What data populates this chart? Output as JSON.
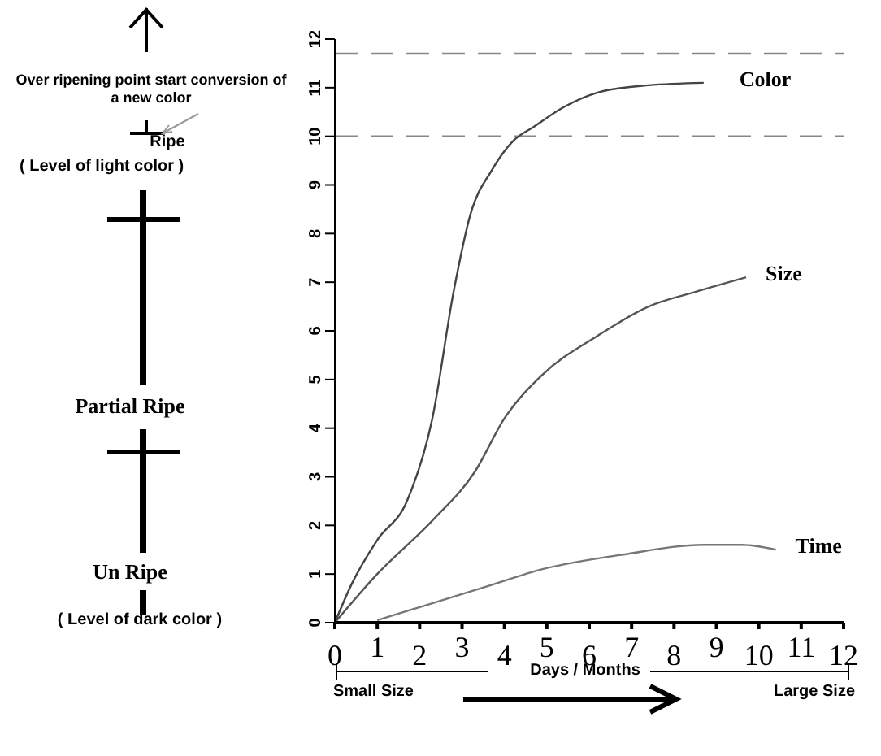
{
  "chart_data": {
    "type": "line",
    "xlabel": "Days / Months",
    "xlim": [
      0,
      12
    ],
    "xticks": [
      0,
      1,
      2,
      3,
      4,
      5,
      6,
      7,
      8,
      9,
      10,
      11,
      12
    ],
    "ylim": [
      0,
      12
    ],
    "yticks": [
      0,
      1,
      2,
      3,
      4,
      5,
      6,
      7,
      8,
      9,
      10,
      11,
      12
    ],
    "grid": false,
    "legend": false,
    "marker": "none",
    "line_style": "solid",
    "series": [
      {
        "name": "Color",
        "color": "#444444",
        "x": [
          0,
          0.4,
          1.0,
          1.7,
          2.3,
          2.8,
          3.2,
          3.7,
          4.2,
          4.7,
          5.4,
          6.2,
          7.4,
          8.7
        ],
        "values": [
          0,
          0.8,
          1.7,
          2.5,
          4.2,
          6.8,
          8.4,
          9.3,
          9.9,
          10.2,
          10.6,
          10.9,
          11.05,
          11.1
        ]
      },
      {
        "name": "Size",
        "color": "#555555",
        "x": [
          0,
          1.0,
          2.3,
          3.3,
          4.0,
          4.9,
          6.2,
          7.4,
          8.5,
          9.7
        ],
        "values": [
          0,
          1.0,
          2.1,
          3.1,
          4.2,
          5.1,
          5.9,
          6.5,
          6.8,
          7.1
        ]
      },
      {
        "name": "Time",
        "color": "#777777",
        "x": [
          1.0,
          2.3,
          3.6,
          4.9,
          6.8,
          8.7,
          9.6,
          10.4
        ],
        "values": [
          0.05,
          0.4,
          0.75,
          1.1,
          1.4,
          1.6,
          1.6,
          1.5
        ]
      }
    ],
    "ref_lines": [
      {
        "axis": "y",
        "value": 11.7,
        "color": "#888888",
        "line_style": "dashed"
      },
      {
        "axis": "y",
        "value": 10,
        "color": "#888888",
        "line_style": "dashed"
      }
    ],
    "annotations": [
      "Over ripening point start conversion of a new color",
      "Ripe",
      "( Level of light color )",
      "Partial Ripe",
      "Un Ripe",
      "( Level of dark color )",
      "Small  Size",
      "Large Size"
    ]
  }
}
